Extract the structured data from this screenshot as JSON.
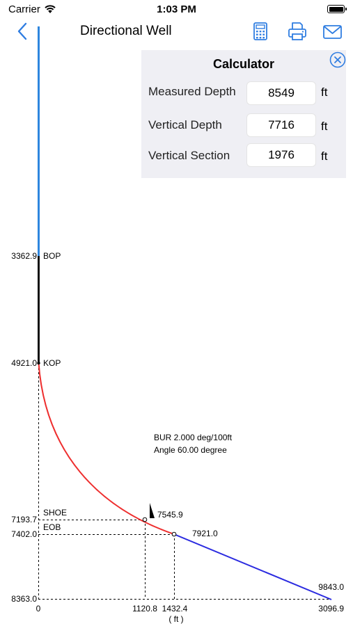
{
  "status_bar": {
    "carrier": "Carrier",
    "time": "1:03 PM"
  },
  "nav": {
    "title": "Directional Well",
    "icons": [
      "back-chevron-icon",
      "calculator-icon",
      "printer-icon",
      "mail-icon"
    ],
    "accent_color": "#2f7de1"
  },
  "calculator": {
    "title": "Calculator",
    "rows": [
      {
        "label": "Measured Depth",
        "value": "8549",
        "unit": "ft"
      },
      {
        "label": "Vertical Depth",
        "value": "7716",
        "unit": "ft"
      },
      {
        "label": "Vertical Section",
        "value": "1976",
        "unit": "ft"
      }
    ]
  },
  "chart_data": {
    "type": "line",
    "x_unit": "( ft )",
    "depth_labels": [
      "3362.9",
      "4921.0",
      "7193.7",
      "7402.0",
      "8363.0"
    ],
    "x_tick_labels": [
      "0",
      "1120.8",
      "1432.4",
      "3096.9"
    ],
    "points": {
      "bop": {
        "label": "BOP",
        "vs": 0,
        "tvd": 3362.9
      },
      "kop": {
        "label": "KOP",
        "vs": 0,
        "tvd": 4921.0
      },
      "shoe": {
        "label": "SHOE",
        "vs": 1120.8,
        "tvd": 7193.7,
        "md": "7545.9"
      },
      "eob": {
        "label": "EOB",
        "vs": 1432.4,
        "tvd": 7402.0,
        "md": "7921.0"
      },
      "td": {
        "vs": 3096.9,
        "tvd": 8363.0,
        "md": "9843.0"
      }
    },
    "annotations": [
      "BUR 2.000 deg/100ft",
      "Angle 60.00 degree"
    ],
    "segment_colors": {
      "surface": "#2e86de",
      "vertical": "#111111",
      "build": "#ee2e2e",
      "tangent": "#2b2be0"
    }
  }
}
